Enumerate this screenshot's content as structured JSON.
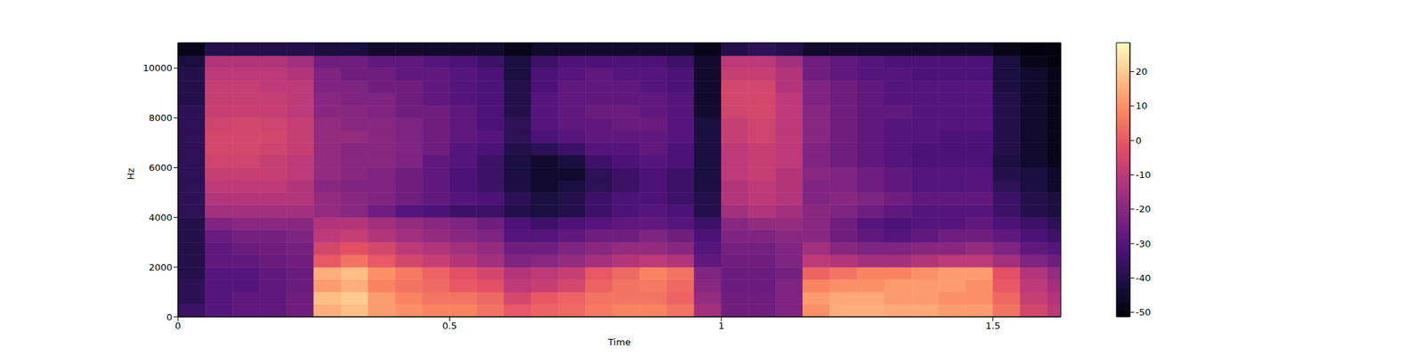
{
  "chart_data": {
    "type": "heatmap",
    "x_label": "Time",
    "y_label": "Hz",
    "x_edges": [
      0,
      0.05,
      0.1,
      0.15,
      0.2,
      0.25,
      0.3,
      0.35,
      0.4,
      0.45,
      0.5,
      0.55,
      0.6,
      0.65,
      0.7,
      0.75,
      0.8,
      0.85,
      0.9,
      0.95,
      1.0,
      1.05,
      1.1,
      1.15,
      1.2,
      1.25,
      1.3,
      1.35,
      1.4,
      1.45,
      1.5,
      1.55,
      1.6,
      1.625
    ],
    "y_edges": [
      0,
      500,
      1000,
      1500,
      2000,
      2500,
      3000,
      3500,
      4000,
      4500,
      5000,
      5500,
      6000,
      6500,
      7000,
      7500,
      8000,
      8500,
      9000,
      9500,
      10000,
      10500,
      11025
    ],
    "cells": [
      [
        -35,
        -30,
        -28,
        -28,
        -25,
        15,
        18,
        12,
        10,
        8,
        8,
        5,
        0,
        2,
        3,
        6,
        8,
        8,
        5,
        -15,
        -25,
        -25,
        -22,
        10,
        15,
        15,
        14,
        14,
        12,
        12,
        5,
        -5,
        -10
      ],
      [
        -38,
        -30,
        -28,
        -28,
        -25,
        18,
        20,
        12,
        8,
        5,
        5,
        3,
        -5,
        0,
        2,
        5,
        5,
        5,
        2,
        -18,
        -25,
        -25,
        -22,
        12,
        14,
        14,
        12,
        12,
        10,
        10,
        3,
        -8,
        -12
      ],
      [
        -38,
        -30,
        -30,
        -28,
        -26,
        12,
        15,
        8,
        5,
        3,
        0,
        -2,
        -10,
        -8,
        -5,
        2,
        5,
        6,
        3,
        -20,
        -26,
        -26,
        -22,
        8,
        10,
        10,
        12,
        12,
        12,
        10,
        0,
        -10,
        -15
      ],
      [
        -40,
        -30,
        -30,
        -28,
        -26,
        15,
        18,
        10,
        6,
        2,
        -2,
        -5,
        -12,
        -10,
        -8,
        0,
        3,
        8,
        5,
        -22,
        -26,
        -26,
        -24,
        2,
        5,
        8,
        8,
        10,
        12,
        12,
        -2,
        -12,
        -18
      ],
      [
        -40,
        -28,
        -28,
        -26,
        -25,
        0,
        5,
        0,
        -5,
        -8,
        -12,
        -15,
        -22,
        -20,
        -18,
        -15,
        -12,
        -10,
        -12,
        -28,
        -25,
        -25,
        -22,
        -10,
        -12,
        -15,
        -15,
        -12,
        -10,
        -10,
        -15,
        -22,
        -25
      ],
      [
        -40,
        -28,
        -26,
        -25,
        -24,
        -5,
        -2,
        -5,
        -10,
        -12,
        -15,
        -18,
        -25,
        -25,
        -22,
        -20,
        -18,
        -18,
        -20,
        -30,
        -24,
        -24,
        -22,
        -15,
        -20,
        -22,
        -22,
        -20,
        -20,
        -18,
        -22,
        -28,
        -30
      ],
      [
        -40,
        -26,
        -24,
        -24,
        -22,
        -10,
        -8,
        -12,
        -15,
        -18,
        -20,
        -22,
        -30,
        -30,
        -28,
        -25,
        -25,
        -22,
        -25,
        -32,
        -22,
        -22,
        -20,
        -20,
        -25,
        -28,
        -30,
        -28,
        -25,
        -25,
        -28,
        -32,
        -35
      ],
      [
        -40,
        -22,
        -20,
        -20,
        -20,
        -12,
        -12,
        -15,
        -18,
        -20,
        -22,
        -25,
        -32,
        -35,
        -32,
        -30,
        -28,
        -28,
        -30,
        -35,
        -20,
        -18,
        -18,
        -20,
        -25,
        -30,
        -32,
        -30,
        -30,
        -28,
        -32,
        -35,
        -38
      ],
      [
        -38,
        -15,
        -15,
        -15,
        -15,
        -18,
        -20,
        -25,
        -30,
        -32,
        -35,
        -35,
        -40,
        -42,
        -40,
        -35,
        -32,
        -30,
        -32,
        -40,
        -15,
        -12,
        -15,
        -20,
        -22,
        -25,
        -28,
        -30,
        -30,
        -30,
        -35,
        -40,
        -42
      ],
      [
        -38,
        -12,
        -12,
        -12,
        -12,
        -18,
        -20,
        -22,
        -25,
        -28,
        -30,
        -32,
        -38,
        -42,
        -40,
        -35,
        -32,
        -32,
        -35,
        -40,
        -12,
        -10,
        -12,
        -22,
        -20,
        -22,
        -25,
        -28,
        -28,
        -28,
        -35,
        -40,
        -42
      ],
      [
        -38,
        -10,
        -10,
        -10,
        -12,
        -20,
        -22,
        -22,
        -25,
        -28,
        -32,
        -35,
        -42,
        -45,
        -42,
        -38,
        -35,
        -32,
        -35,
        -42,
        -12,
        -10,
        -12,
        -22,
        -22,
        -25,
        -28,
        -30,
        -30,
        -30,
        -38,
        -42,
        -45
      ],
      [
        -38,
        -8,
        -8,
        -8,
        -10,
        -18,
        -20,
        -22,
        -25,
        -28,
        -32,
        -35,
        -42,
        -45,
        -45,
        -38,
        -35,
        -32,
        -35,
        -42,
        -10,
        -8,
        -12,
        -20,
        -22,
        -25,
        -28,
        -30,
        -30,
        -30,
        -40,
        -42,
        -45
      ],
      [
        -38,
        -6,
        -6,
        -8,
        -10,
        -18,
        -20,
        -20,
        -22,
        -28,
        -30,
        -35,
        -42,
        -45,
        -42,
        -35,
        -32,
        -30,
        -32,
        -42,
        -10,
        -8,
        -10,
        -22,
        -25,
        -28,
        -30,
        -32,
        -32,
        -32,
        -42,
        -45,
        -48
      ],
      [
        -38,
        -5,
        -5,
        -6,
        -8,
        -18,
        -20,
        -20,
        -22,
        -25,
        -30,
        -32,
        -40,
        -38,
        -35,
        -30,
        -30,
        -28,
        -32,
        -42,
        -10,
        -8,
        -10,
        -22,
        -25,
        -28,
        -30,
        -32,
        -32,
        -32,
        -40,
        -45,
        -48
      ],
      [
        -38,
        -5,
        -5,
        -5,
        -8,
        -18,
        -18,
        -20,
        -22,
        -25,
        -28,
        -30,
        -38,
        -32,
        -30,
        -28,
        -28,
        -28,
        -30,
        -42,
        -8,
        -6,
        -10,
        -20,
        -25,
        -28,
        -30,
        -30,
        -32,
        -32,
        -40,
        -45,
        -48
      ],
      [
        -38,
        -6,
        -5,
        -6,
        -8,
        -18,
        -20,
        -20,
        -22,
        -25,
        -28,
        -32,
        -38,
        -30,
        -28,
        -28,
        -26,
        -26,
        -30,
        -42,
        -8,
        -6,
        -10,
        -20,
        -25,
        -28,
        -30,
        -30,
        -30,
        -30,
        -40,
        -45,
        -48
      ],
      [
        -38,
        -8,
        -8,
        -8,
        -10,
        -20,
        -20,
        -22,
        -25,
        -25,
        -28,
        -32,
        -40,
        -30,
        -28,
        -26,
        -26,
        -28,
        -30,
        -45,
        -6,
        -5,
        -10,
        -20,
        -25,
        -28,
        -28,
        -30,
        -30,
        -30,
        -40,
        -45,
        -48
      ],
      [
        -40,
        -8,
        -8,
        -8,
        -10,
        -20,
        -22,
        -22,
        -25,
        -28,
        -30,
        -32,
        -40,
        -30,
        -28,
        -28,
        -28,
        -28,
        -30,
        -45,
        -5,
        -5,
        -10,
        -22,
        -25,
        -28,
        -30,
        -30,
        -30,
        -30,
        -40,
        -45,
        -48
      ],
      [
        -40,
        -8,
        -8,
        -10,
        -10,
        -22,
        -22,
        -25,
        -25,
        -28,
        -30,
        -32,
        -40,
        -32,
        -28,
        -28,
        -28,
        -30,
        -32,
        -45,
        -5,
        -5,
        -12,
        -22,
        -25,
        -28,
        -30,
        -30,
        -30,
        -30,
        -42,
        -45,
        -48
      ],
      [
        -40,
        -10,
        -10,
        -10,
        -12,
        -22,
        -25,
        -25,
        -28,
        -28,
        -30,
        -32,
        -42,
        -32,
        -30,
        -28,
        -30,
        -30,
        -32,
        -45,
        -8,
        -8,
        -12,
        -25,
        -28,
        -30,
        -30,
        -32,
        -32,
        -32,
        -42,
        -45,
        -48
      ],
      [
        -42,
        -12,
        -12,
        -12,
        -15,
        -25,
        -25,
        -28,
        -28,
        -30,
        -32,
        -35,
        -42,
        -35,
        -32,
        -32,
        -32,
        -32,
        -35,
        -45,
        -10,
        -10,
        -15,
        -25,
        -28,
        -30,
        -32,
        -32,
        -32,
        -32,
        -42,
        -48,
        -50
      ],
      [
        -48,
        -40,
        -40,
        -40,
        -40,
        -42,
        -42,
        -45,
        -45,
        -45,
        -45,
        -45,
        -48,
        -45,
        -45,
        -45,
        -45,
        -45,
        -45,
        -48,
        -40,
        -38,
        -40,
        -45,
        -45,
        -45,
        -45,
        -45,
        -45,
        -45,
        -48,
        -50,
        -50
      ]
    ],
    "xlim": [
      0,
      1.625
    ],
    "ylim": [
      0,
      11025
    ],
    "xticks": [
      0,
      0.5,
      1,
      1.5
    ],
    "yticks": [
      0,
      2000,
      4000,
      6000,
      8000,
      10000
    ],
    "colorbar": {
      "range": [
        -51.3,
        28.4
      ],
      "ticks": [
        -50,
        -40,
        -30,
        -20,
        -10,
        0,
        10,
        20
      ]
    }
  }
}
